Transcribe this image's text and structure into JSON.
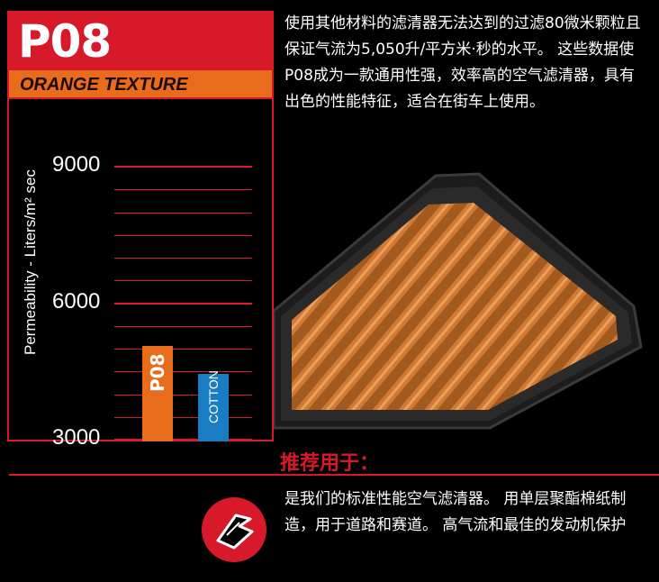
{
  "header": {
    "title": "P08",
    "subtitle": "ORANGE TEXTURE"
  },
  "description_top": "使用其他材料的滤清器无法达到的过滤80微米颗粒且保证气流为5,050升/平方米·秒的水平。 这些数据使P08成为一款通用性强，效率高的空气滤清器，具有出色的性能特征，适合在街车上使用。",
  "recommend": {
    "title": "推荐用于：",
    "description": "是我们的标准性能空气滤清器。 用单层聚酯棉纸制造，用于道路和赛道。 高气流和最佳的发动机保护"
  },
  "icons": {
    "filter_image": "air-filter-photo",
    "road_track_icon": "road-track-icon"
  },
  "colors": {
    "brand_red": "#d7192a",
    "orange": "#e86c1c",
    "blue": "#1a7cc2",
    "background": "#000000"
  },
  "chart_data": {
    "type": "bar",
    "ylabel": "Permeability - Liters/m² sec",
    "ylim": [
      3000,
      9000
    ],
    "yticks": [
      9000,
      6000,
      3000
    ],
    "categories": [
      "P08",
      "COTTON"
    ],
    "values": [
      5050,
      4450
    ],
    "bar_colors": [
      "#e86c1c",
      "#1a7cc2"
    ],
    "grid": true
  }
}
